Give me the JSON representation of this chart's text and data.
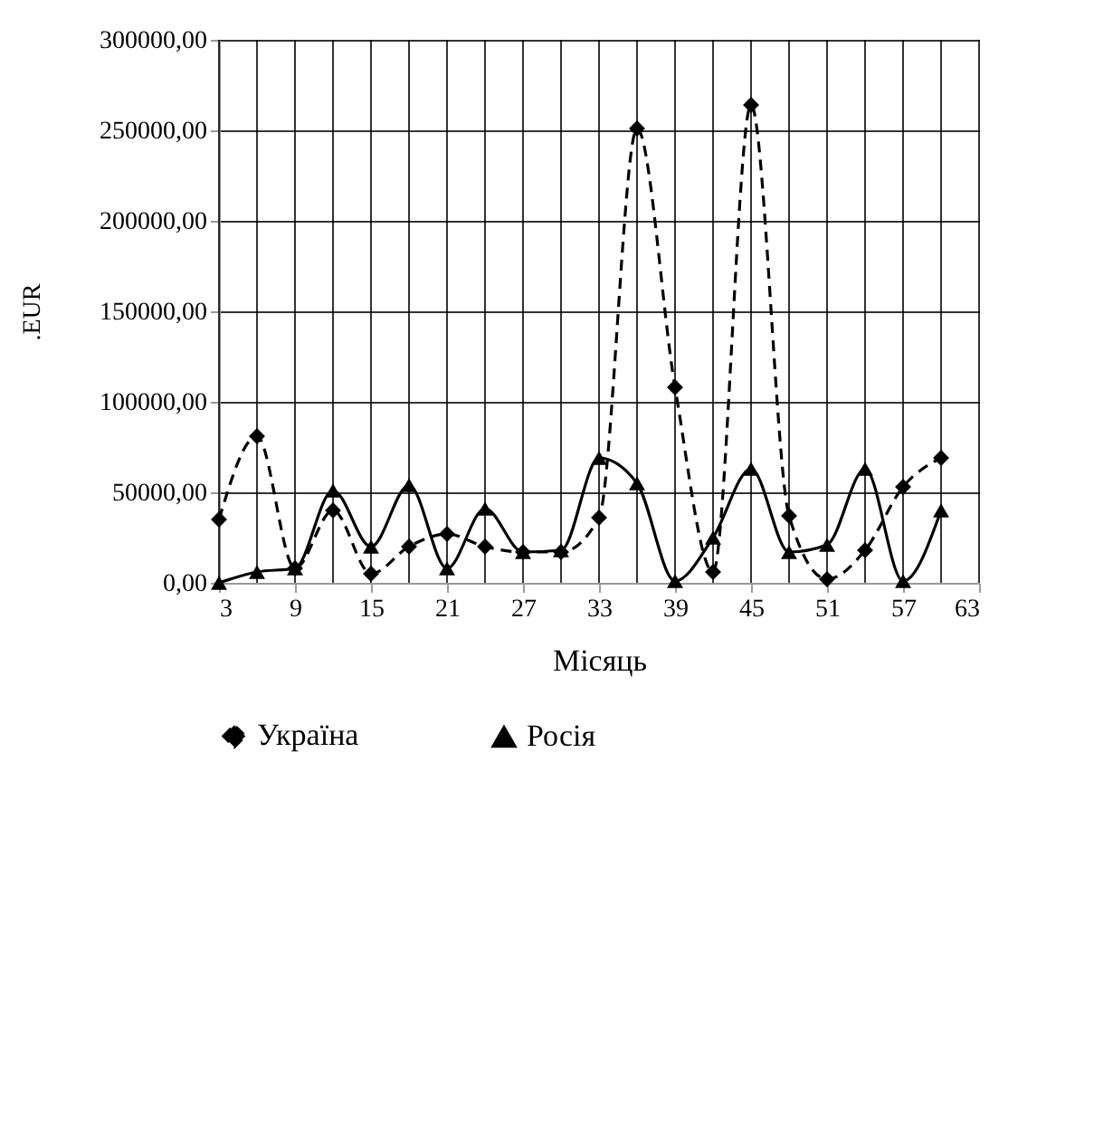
{
  "chart_data": {
    "type": "line",
    "xlabel": "Місяць",
    "ylabel": ".EUR",
    "x": [
      3,
      6,
      9,
      12,
      15,
      18,
      21,
      24,
      27,
      30,
      33,
      36,
      39,
      42,
      45,
      48,
      51,
      54,
      57,
      60
    ],
    "series": [
      {
        "name": "Україна",
        "color": "#000000",
        "marker": "diamond",
        "line_style": "dashed",
        "values": [
          35000,
          81000,
          8000,
          40000,
          5000,
          20000,
          27000,
          20000,
          17000,
          17000,
          36000,
          251000,
          108000,
          6000,
          264000,
          37000,
          2000,
          18000,
          53000,
          69000
        ]
      },
      {
        "name": "Росія",
        "color": "#000000",
        "marker": "triangle",
        "line_style": "solid",
        "values": [
          0,
          6000,
          8000,
          51000,
          20000,
          54000,
          8000,
          41000,
          17000,
          18000,
          69000,
          55000,
          1000,
          25000,
          63000,
          17000,
          21000,
          63000,
          1000,
          40000
        ]
      }
    ],
    "xlim": [
      3,
      63
    ],
    "xticks": [
      3,
      {
        "value": 6,
        "label": null
      },
      9,
      {
        "value": 12,
        "label": null
      },
      15,
      {
        "value": 18,
        "label": null
      },
      21,
      {
        "value": 24,
        "label": null
      },
      27,
      {
        "value": 30,
        "label": null
      },
      33,
      {
        "value": 36,
        "label": null
      },
      39,
      {
        "value": 42,
        "label": null
      },
      45,
      {
        "value": 48,
        "label": null
      },
      51,
      {
        "value": 54,
        "label": null
      },
      57,
      {
        "value": 60,
        "label": null
      },
      63
    ],
    "ylim": [
      0,
      300000
    ],
    "yticks": [
      {
        "value": 0,
        "label": "0,00"
      },
      {
        "value": 50000,
        "label": "50000,00"
      },
      {
        "value": 100000,
        "label": "100000,00"
      },
      {
        "value": 150000,
        "label": "150000,00"
      },
      {
        "value": 200000,
        "label": "200000,00"
      },
      {
        "value": 250000,
        "label": "250000,00"
      },
      {
        "value": 300000,
        "label": "300000,00"
      }
    ],
    "grid": true,
    "legend": "bottom"
  }
}
